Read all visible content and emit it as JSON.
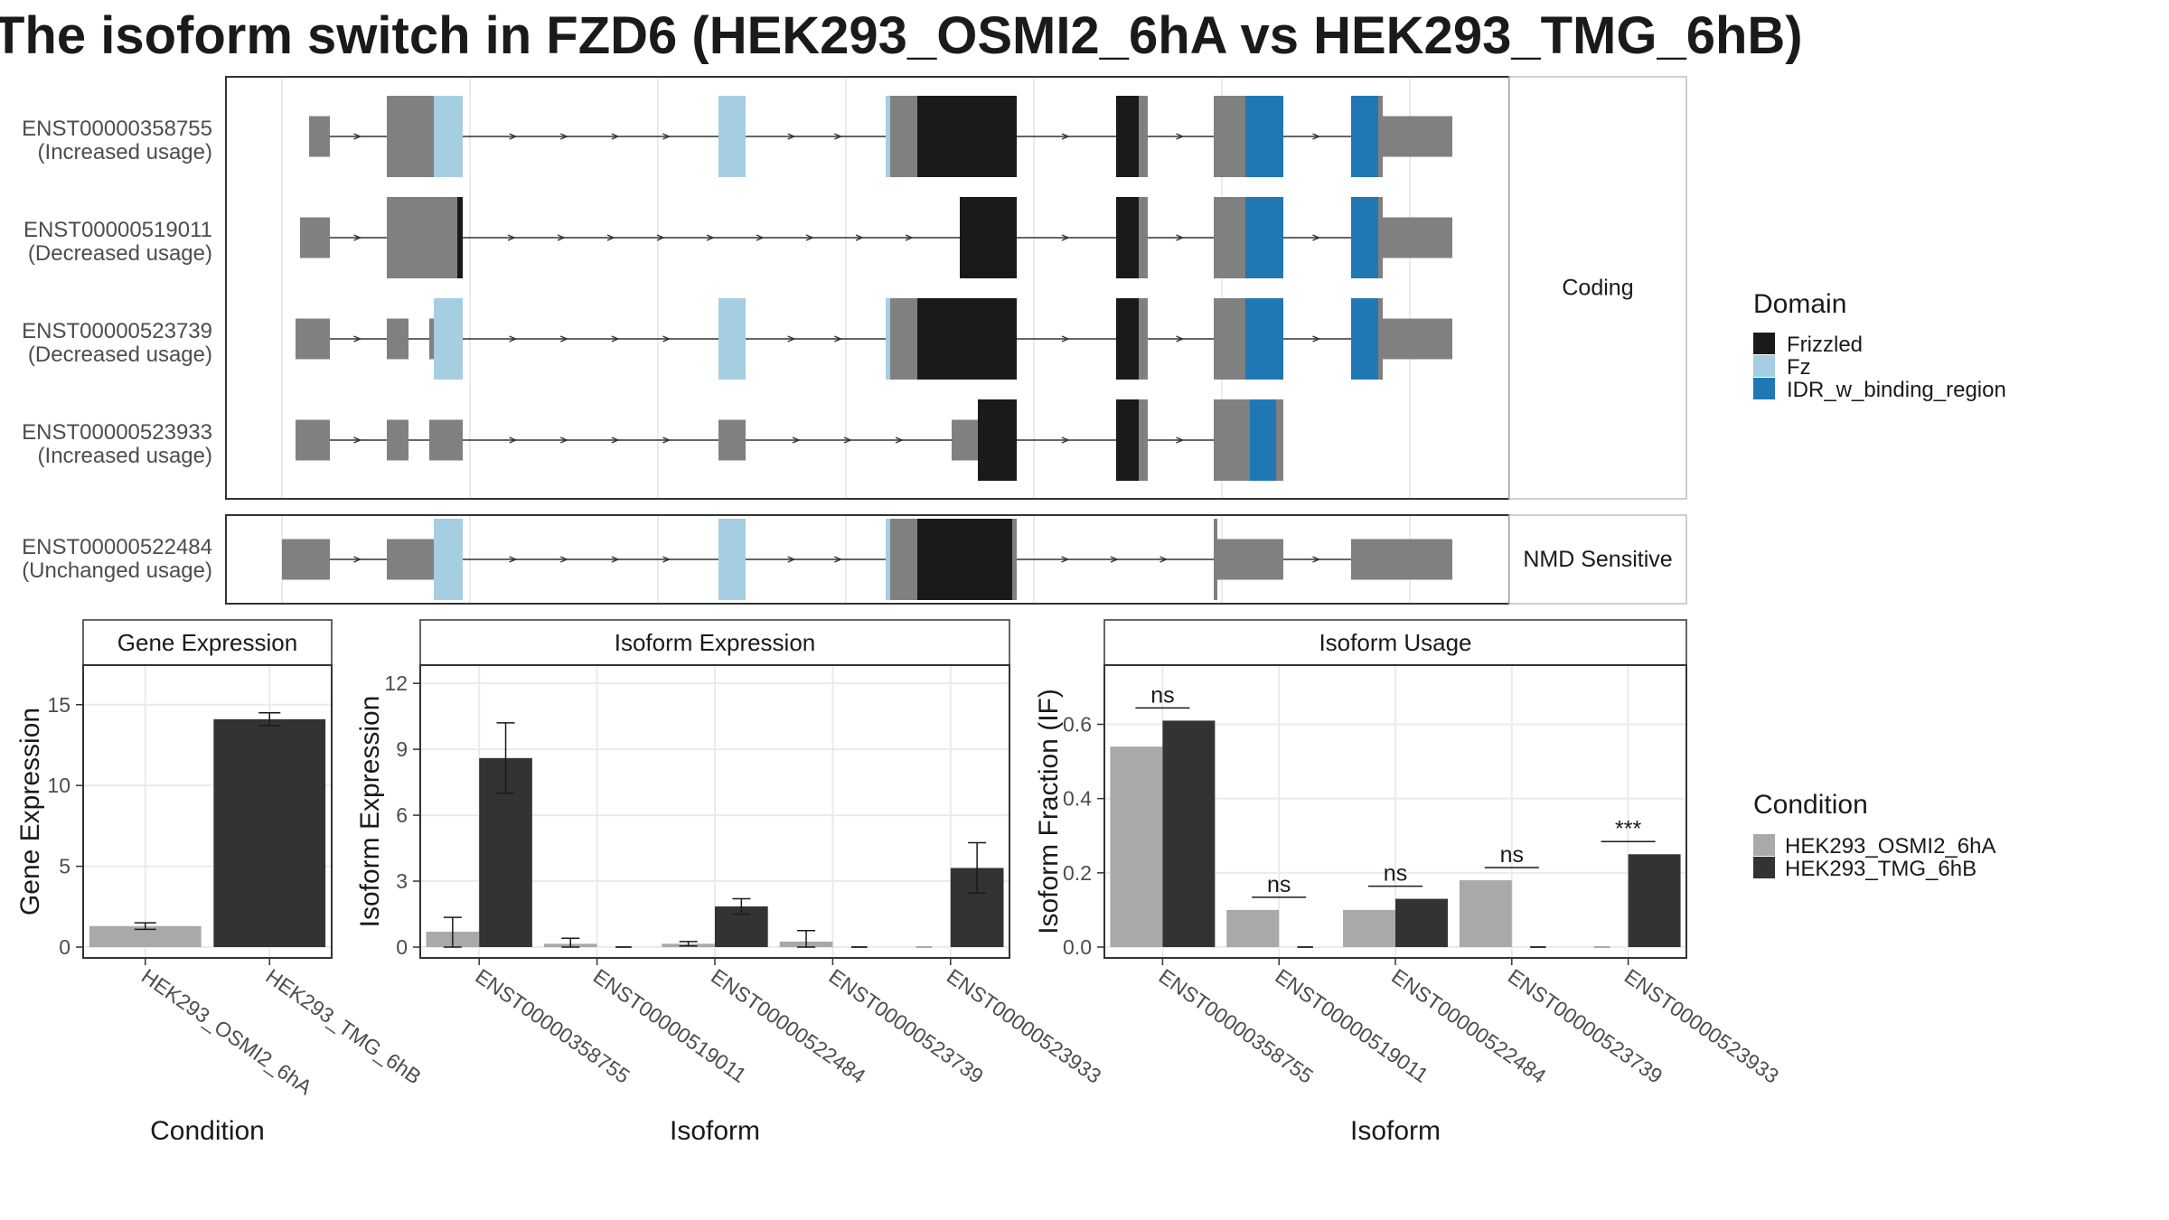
{
  "title": "The isoform switch in FZD6 (HEK293_OSMI2_6hA vs HEK293_TMG_6hB)",
  "colors": {
    "frizzled": "#1a1a1a",
    "fz": "#a6cee3",
    "idr": "#1f78b4",
    "exon": "#808080",
    "cond_a": "#a9a9a9",
    "cond_b": "#333333"
  },
  "domain_legend": {
    "title": "Domain",
    "items": [
      {
        "label": "Frizzled",
        "color": "#1a1a1a"
      },
      {
        "label": "Fz",
        "color": "#a6cee3"
      },
      {
        "label": "IDR_w_binding_region",
        "color": "#1f78b4"
      }
    ]
  },
  "condition_legend": {
    "title": "Condition",
    "items": [
      {
        "label": "HEK293_OSMI2_6hA",
        "color": "#a9a9a9"
      },
      {
        "label": "HEK293_TMG_6hB",
        "color": "#333333"
      }
    ]
  },
  "transcripts": {
    "facets": [
      {
        "label": "Coding",
        "rows": [
          {
            "id": "ENST00000358755",
            "note": "(Increased usage)"
          },
          {
            "id": "ENST00000519011",
            "note": "(Decreased usage)"
          },
          {
            "id": "ENST00000523739",
            "note": "(Decreased usage)"
          },
          {
            "id": "ENST00000523933",
            "note": "(Increased usage)"
          }
        ]
      },
      {
        "label": "NMD Sensitive",
        "rows": [
          {
            "id": "ENST00000522484",
            "note": "(Unchanged usage)"
          }
        ]
      }
    ]
  },
  "chart_data": [
    {
      "type": "bar",
      "title": "Gene Expression",
      "xlabel": "Condition",
      "ylabel": "Gene Expression",
      "categories": [
        "HEK293_OSMI2_6hA",
        "HEK293_TMG_6hB"
      ],
      "values": [
        1.3,
        14.1
      ],
      "errors": [
        [
          1.1,
          1.5
        ],
        [
          13.7,
          14.5
        ]
      ],
      "yticks": [
        "0",
        "5",
        "10",
        "15"
      ],
      "ylim": [
        0,
        17
      ]
    },
    {
      "type": "bar",
      "title": "Isoform Expression",
      "xlabel": "Isoform",
      "ylabel": "Isoform Expression",
      "categories": [
        "ENST00000358755",
        "ENST00000519011",
        "ENST00000522484",
        "ENST00000523739",
        "ENST00000523933"
      ],
      "series": [
        {
          "name": "HEK293_OSMI2_6hA",
          "values": [
            0.7,
            0.15,
            0.15,
            0.25,
            0.0
          ],
          "errors": [
            [
              0.0,
              1.35
            ],
            [
              0.0,
              0.4
            ],
            [
              0.05,
              0.25
            ],
            [
              0.0,
              0.75
            ],
            [
              0.0,
              0.0
            ]
          ]
        },
        {
          "name": "HEK293_TMG_6hB",
          "values": [
            8.6,
            0.0,
            1.85,
            0.0,
            3.6
          ],
          "errors": [
            [
              7.0,
              10.2
            ],
            [
              0.0,
              0.0
            ],
            [
              1.5,
              2.2
            ],
            [
              0.0,
              0.0
            ],
            [
              2.45,
              4.75
            ]
          ]
        }
      ],
      "yticks": [
        "0",
        "3",
        "6",
        "9",
        "12"
      ],
      "ylim": [
        0,
        12.5
      ]
    },
    {
      "type": "bar",
      "title": "Isoform Usage",
      "xlabel": "Isoform",
      "ylabel": "Isoform Fraction (IF)",
      "categories": [
        "ENST00000358755",
        "ENST00000519011",
        "ENST00000522484",
        "ENST00000523739",
        "ENST00000523933"
      ],
      "series": [
        {
          "name": "HEK293_OSMI2_6hA",
          "values": [
            0.54,
            0.1,
            0.1,
            0.18,
            0.0
          ]
        },
        {
          "name": "HEK293_TMG_6hB",
          "values": [
            0.61,
            0.0,
            0.13,
            0.0,
            0.25
          ]
        }
      ],
      "significance": [
        "ns",
        "ns",
        "ns",
        "ns",
        "***"
      ],
      "yticks": [
        "0.0",
        "0.2",
        "0.4",
        "0.6"
      ],
      "ylim": [
        0,
        0.74
      ]
    }
  ]
}
